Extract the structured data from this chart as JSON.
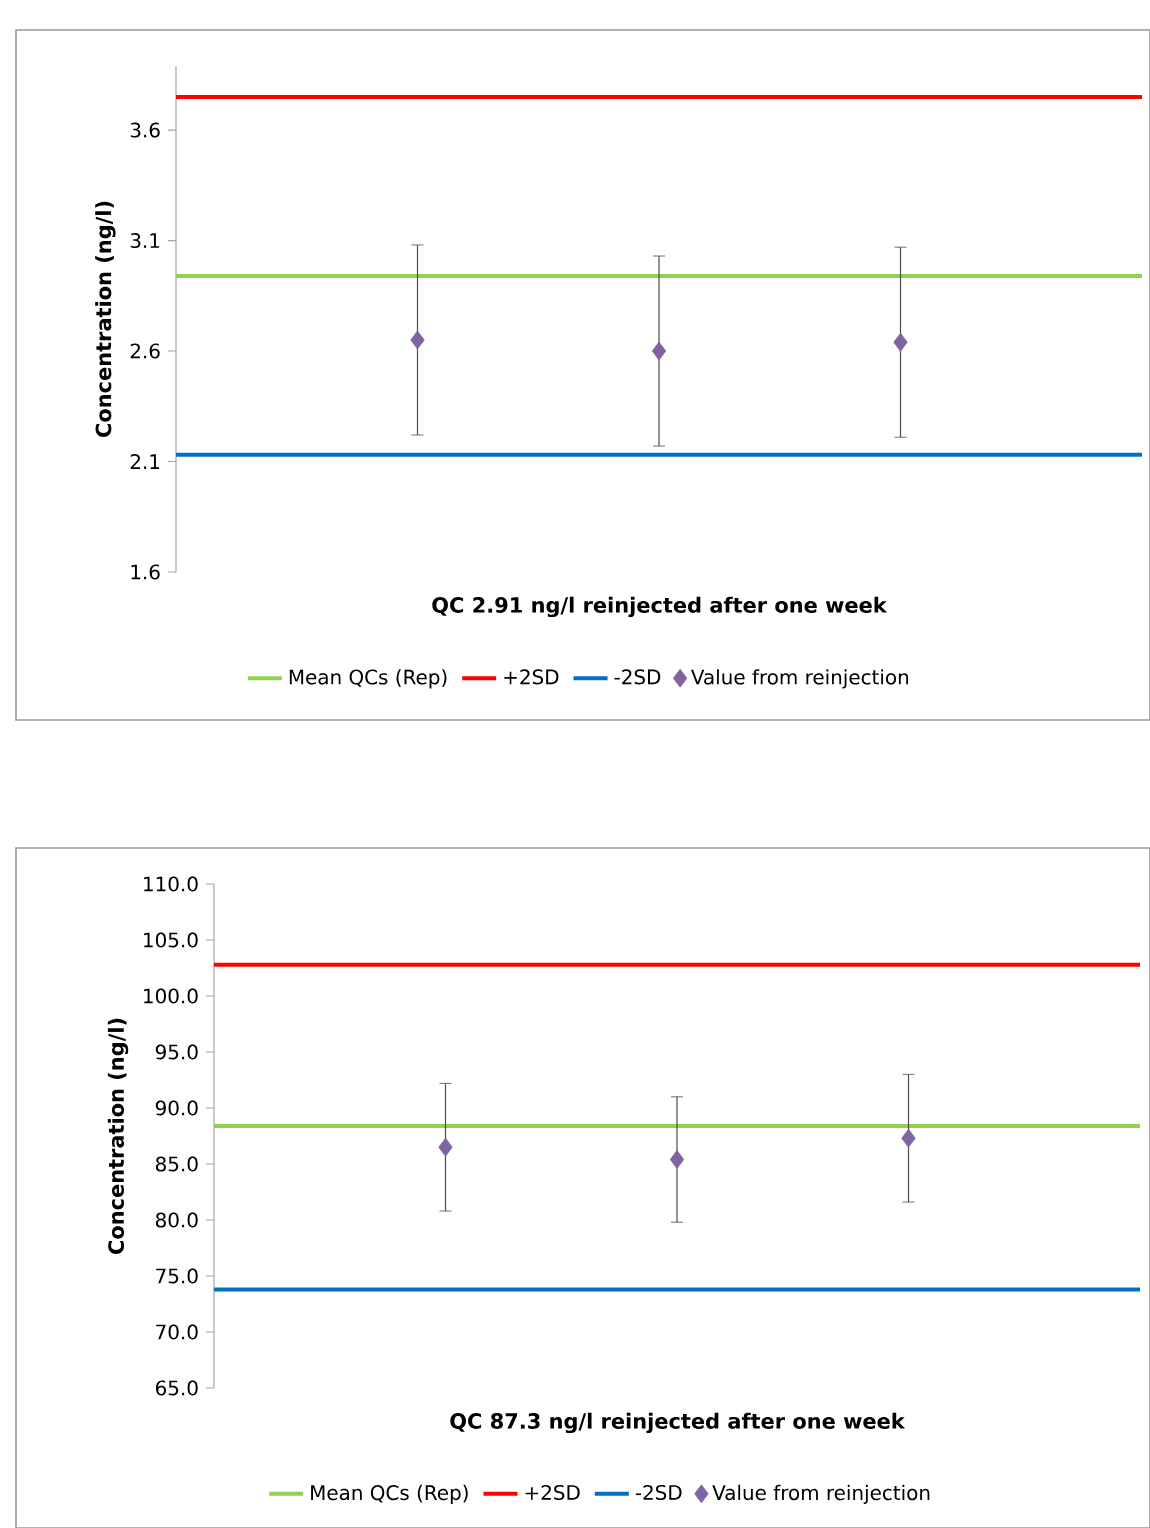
{
  "chart_data": [
    {
      "type": "scatter",
      "xlabel": "QC 2.91 ng/l reinjected after one week",
      "ylabel": "Concentration (ng/l)",
      "categories": [
        null,
        null,
        null
      ],
      "series": [
        {
          "name": "Value from reinjection",
          "color": "#8064a2",
          "marker": "diamond",
          "values": [
            2.65,
            2.6,
            2.64
          ],
          "errors": [
            0.43,
            0.43,
            0.43
          ]
        }
      ],
      "ref_lines": [
        {
          "axis": "y",
          "value": 2.94,
          "label": "Mean QCs (Rep)",
          "color": "#92d050"
        },
        {
          "axis": "y",
          "value": 3.75,
          "label": "+2SD",
          "color": "#ff0000"
        },
        {
          "axis": "y",
          "value": 2.13,
          "label": "-2SD",
          "color": "#0070c0"
        }
      ],
      "ylim": [
        1.6,
        3.89
      ],
      "yticks": [
        1.6,
        2.1,
        2.6,
        3.1,
        3.6
      ],
      "legend": "bottom",
      "tick_labels": "y"
    },
    {
      "type": "scatter",
      "xlabel": "QC 87.3 ng/l reinjected after one week",
      "ylabel": "Concentration (ng/l)",
      "categories": [
        null,
        null,
        null
      ],
      "series": [
        {
          "name": "Value from reinjection",
          "color": "#8064a2",
          "marker": "diamond",
          "values": [
            86.5,
            85.4,
            87.3
          ],
          "errors": [
            5.7,
            5.6,
            5.7
          ]
        }
      ],
      "ref_lines": [
        {
          "axis": "y",
          "value": 88.4,
          "label": "Mean QCs (Rep)",
          "color": "#92d050"
        },
        {
          "axis": "y",
          "value": 102.8,
          "label": "+2SD",
          "color": "#ff0000"
        },
        {
          "axis": "y",
          "value": 73.8,
          "label": "-2SD",
          "color": "#0070c0"
        }
      ],
      "ylim": [
        65,
        110
      ],
      "yticks": [
        {
          "value": 65,
          "label": "65.0"
        },
        {
          "value": 70,
          "label": "70.0"
        },
        {
          "value": 75,
          "label": "75.0"
        },
        {
          "value": 80,
          "label": "80.0"
        },
        {
          "value": 85,
          "label": "85.0"
        },
        {
          "value": 90,
          "label": "90.0"
        },
        {
          "value": 95,
          "label": "95.0"
        },
        {
          "value": 100,
          "label": "100.0"
        },
        {
          "value": 105,
          "label": "105.0"
        },
        {
          "value": 110,
          "label": "110.0"
        }
      ],
      "legend": "bottom",
      "tick_labels": "y"
    }
  ]
}
